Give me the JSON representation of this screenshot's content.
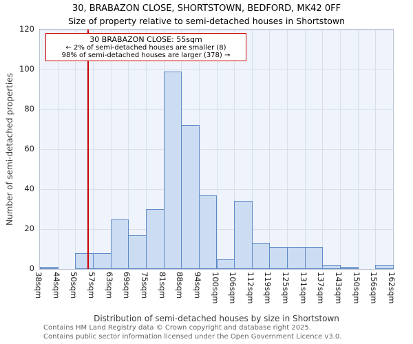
{
  "chart_data": {
    "type": "bar",
    "title": "30, BRABAZON CLOSE, SHORTSTOWN, BEDFORD, MK42 0FF",
    "subtitle": "Size of property relative to semi-detached houses in Shortstown",
    "xlabel": "Distribution of semi-detached houses by size in Shortstown",
    "ylabel": "Number of semi-detached properties",
    "categories": [
      "38sqm",
      "44sqm",
      "50sqm",
      "57sqm",
      "63sqm",
      "69sqm",
      "75sqm",
      "81sqm",
      "88sqm",
      "94sqm",
      "100sqm",
      "106sqm",
      "112sqm",
      "119sqm",
      "125sqm",
      "131sqm",
      "137sqm",
      "143sqm",
      "150sqm",
      "156sqm",
      "162sqm"
    ],
    "values": [
      1,
      0,
      8,
      8,
      25,
      17,
      30,
      99,
      72,
      37,
      5,
      34,
      13,
      11,
      11,
      11,
      2,
      1,
      0,
      2
    ],
    "ylim": [
      0,
      120
    ],
    "yticks": [
      0,
      20,
      40,
      60,
      80,
      100,
      120
    ],
    "grid": true,
    "legend": "none",
    "marker": {
      "value_sqm": 55
    }
  },
  "annotation": {
    "line1": "30 BRABAZON CLOSE: 55sqm",
    "line2": "← 2% of semi-detached houses are smaller (8)",
    "line3": "98% of semi-detached houses are larger (378) →"
  },
  "footer": {
    "line1": "Contains HM Land Registry data © Crown copyright and database right 2025.",
    "line2": "Contains public sector information licensed under the Open Government Licence v3.0."
  },
  "colors": {
    "bar_fill": "#ccdcf2",
    "bar_stroke": "#5e8ac7",
    "grid": "#d8dfeb",
    "plot_bg": "#eff3fb",
    "marker": "#cc0000"
  }
}
